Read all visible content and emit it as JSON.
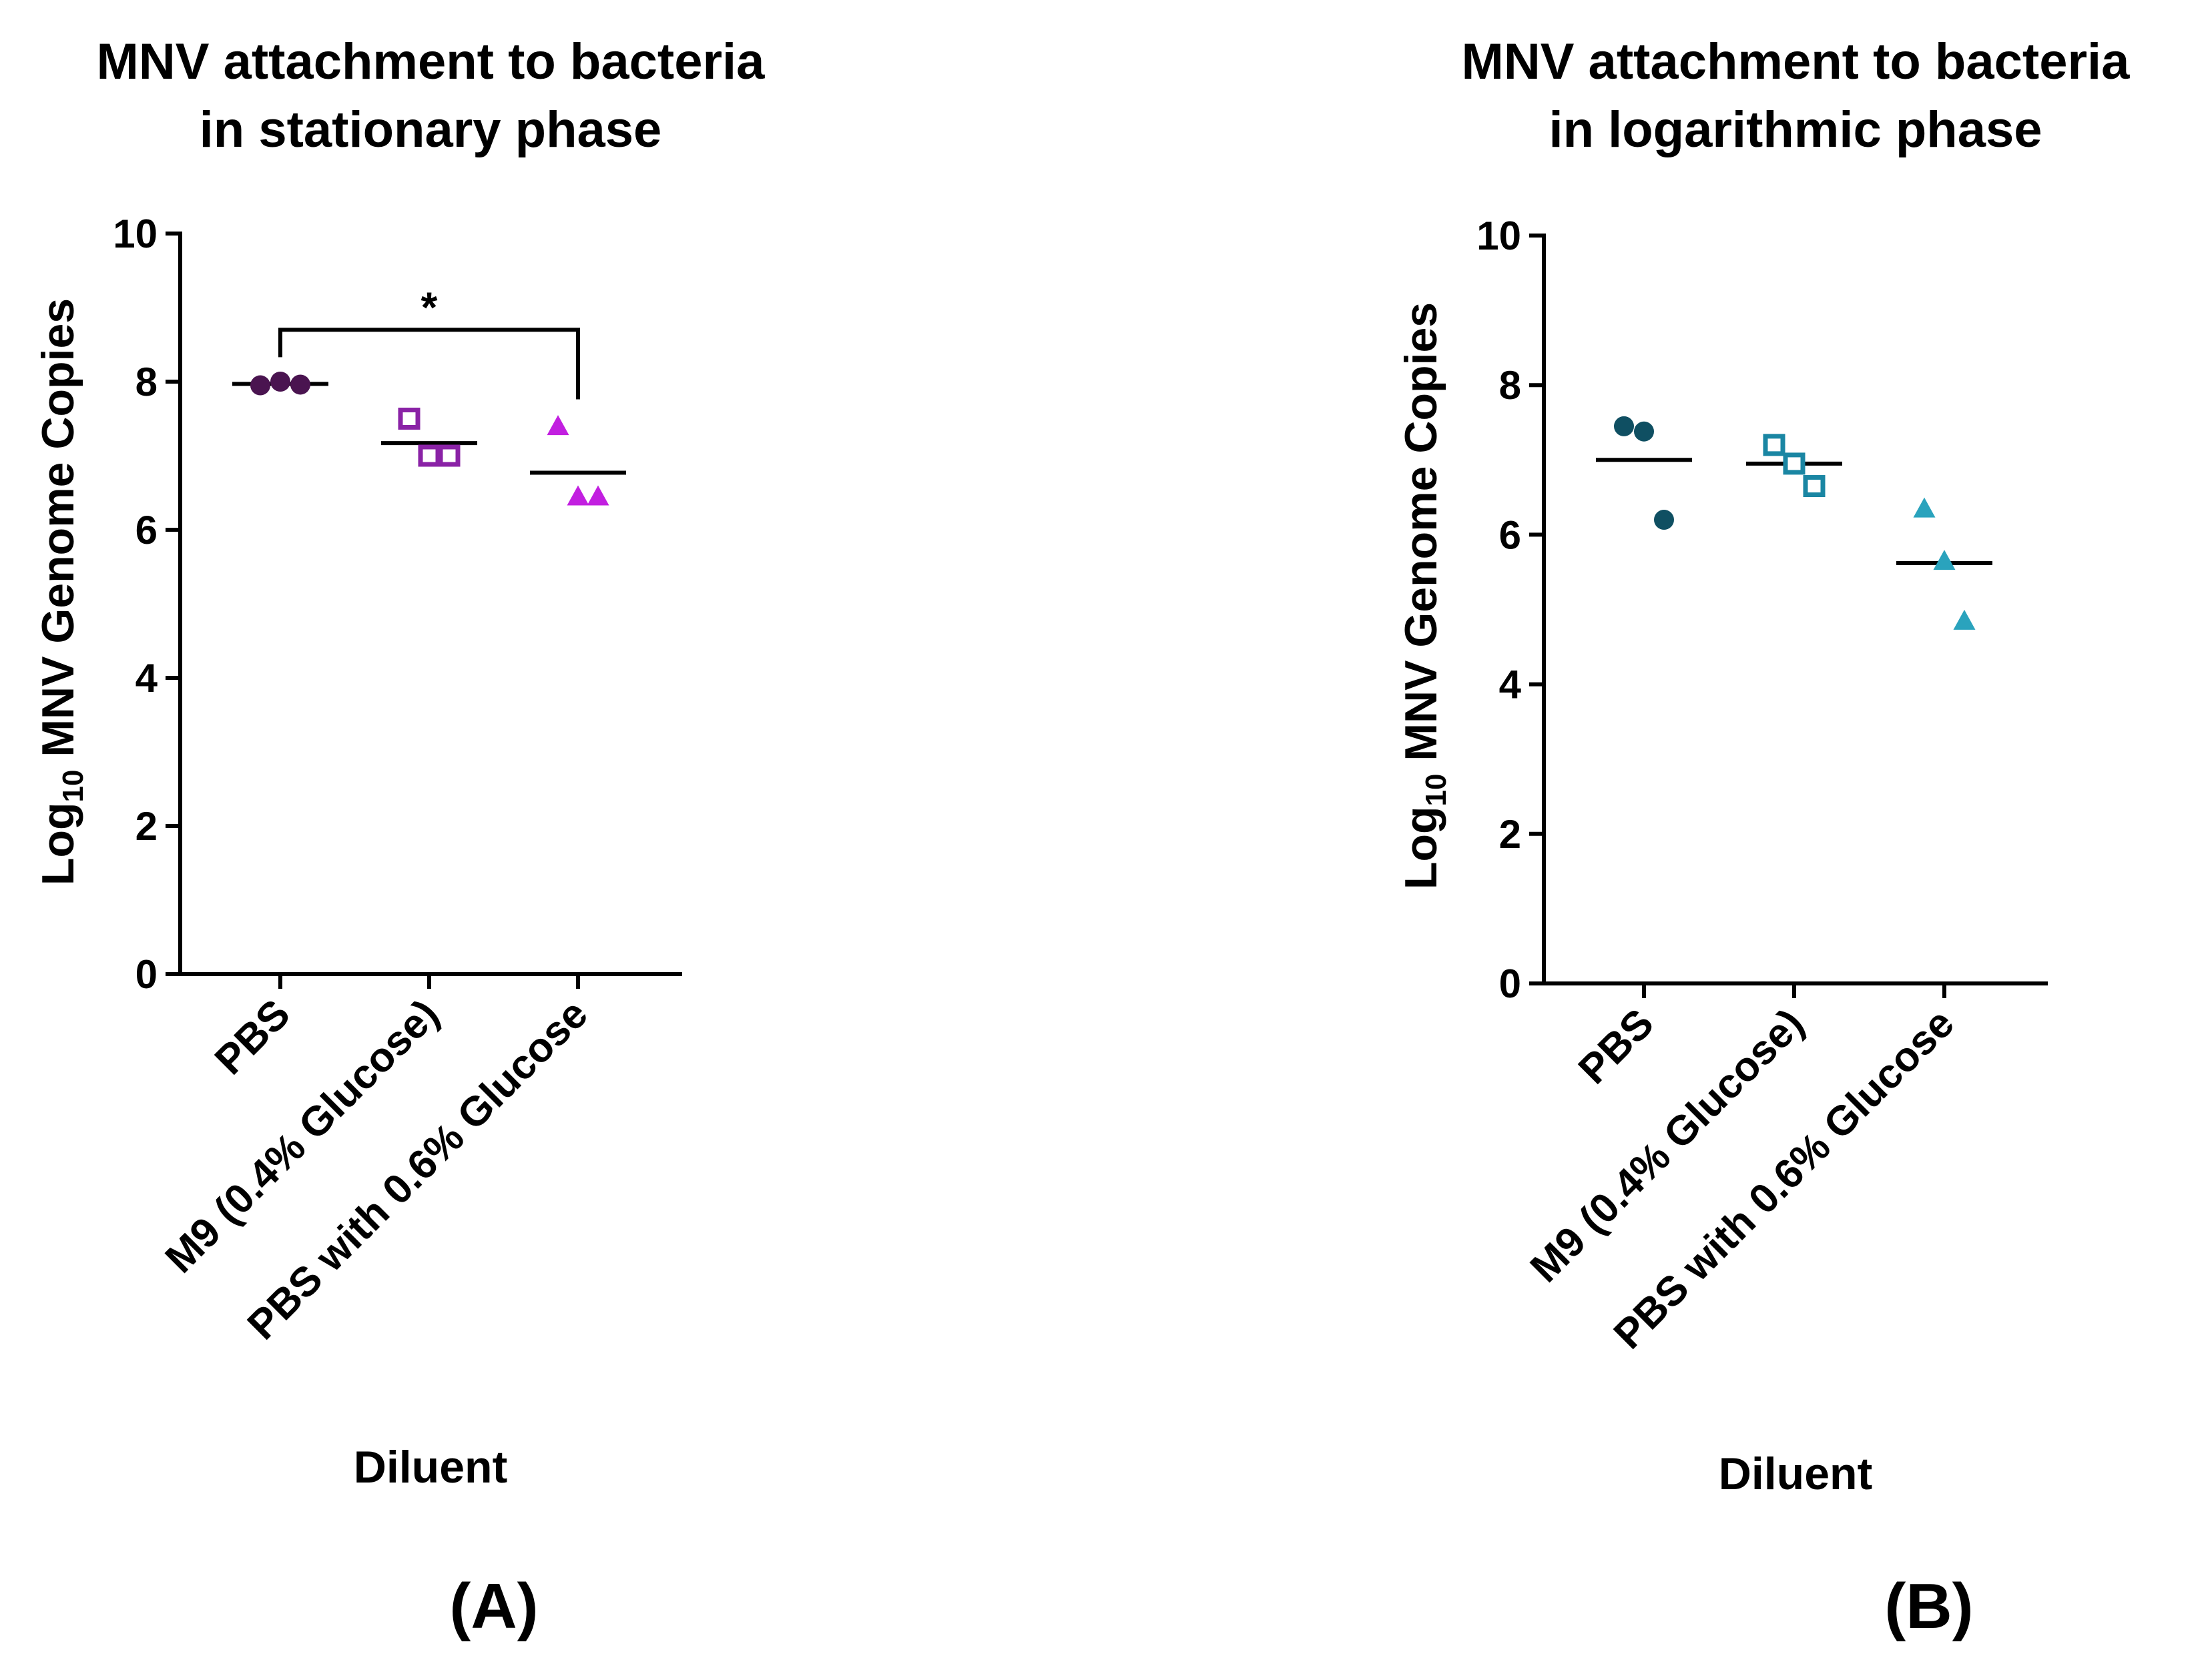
{
  "chart_data": [
    {
      "panel": "(A)",
      "type": "scatter",
      "title_lines": [
        "MNV attachment to bacteria",
        "in stationary phase"
      ],
      "xlabel": "Diluent",
      "ylabel": {
        "prefix": "Log",
        "sub": "10",
        "suffix": " MNV Genome Copies"
      },
      "ylim": [
        0,
        10
      ],
      "yticks": [
        0,
        2,
        4,
        6,
        8,
        10
      ],
      "categories": [
        "PBS",
        "M9 (0.4% Glucose)",
        "PBS with 0.6% Glucose"
      ],
      "series": [
        {
          "name": "PBS",
          "marker": "circle",
          "color": "#4a1450",
          "values": [
            7.95,
            8.0,
            7.96
          ],
          "mean": 7.97
        },
        {
          "name": "M9 (0.4% Glucose)",
          "marker": "square-open",
          "color": "#8a22a6",
          "values": [
            7.5,
            7.0,
            7.0
          ],
          "mean": 7.17
        },
        {
          "name": "PBS with 0.6% Glucose",
          "marker": "triangle",
          "color": "#c21fe0",
          "values": [
            7.4,
            6.45,
            6.45
          ],
          "mean": 6.77
        }
      ],
      "significance": {
        "from": 0,
        "to": 2,
        "label": "*",
        "y": 8.7
      }
    },
    {
      "panel": "(B)",
      "type": "scatter",
      "title_lines": [
        "MNV attachment to bacteria",
        "in logarithmic phase"
      ],
      "xlabel": "Diluent",
      "ylabel": {
        "prefix": "Log",
        "sub": "10",
        "suffix": " MNV Genome Copies"
      },
      "ylim": [
        0,
        10
      ],
      "yticks": [
        0,
        2,
        4,
        6,
        8,
        10
      ],
      "categories": [
        "PBS",
        "M9 (0.4% Glucose)",
        "PBS with 0.6% Glucose"
      ],
      "series": [
        {
          "name": "PBS",
          "marker": "circle",
          "color": "#0f4f62",
          "values": [
            7.45,
            7.38,
            6.2
          ],
          "mean": 7.0
        },
        {
          "name": "M9 (0.4% Glucose)",
          "marker": "square-open",
          "color": "#1a86a3",
          "values": [
            7.2,
            6.95,
            6.65
          ],
          "mean": 6.95
        },
        {
          "name": "PBS with 0.6% Glucose",
          "marker": "triangle",
          "color": "#2aa3bd",
          "values": [
            6.35,
            5.65,
            4.85
          ],
          "mean": 5.62
        }
      ]
    }
  ]
}
